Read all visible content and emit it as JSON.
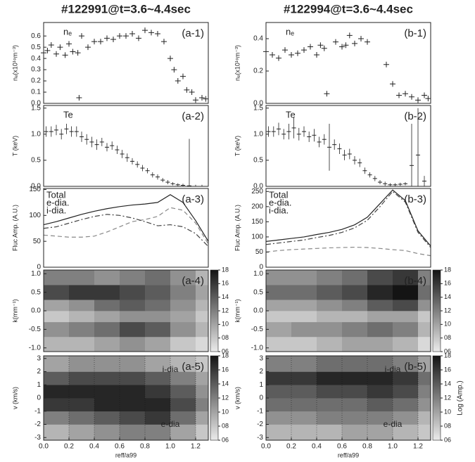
{
  "chart_data": [
    {
      "type": "scatter",
      "title": "#122991@t=3.6~4.4sec",
      "label": "(a-1)",
      "series_label": "nₑ",
      "ylabel": "nₑ(x10¹⁹m⁻³)",
      "color": "#222222",
      "x": [
        0.0,
        0.03,
        0.06,
        0.1,
        0.13,
        0.17,
        0.2,
        0.23,
        0.27,
        0.28,
        0.3,
        0.35,
        0.4,
        0.45,
        0.5,
        0.55,
        0.6,
        0.65,
        0.7,
        0.75,
        0.8,
        0.85,
        0.9,
        0.95,
        1.0,
        1.03,
        1.06,
        1.1,
        1.13,
        1.17,
        1.2,
        1.25,
        1.28
      ],
      "values": [
        0.45,
        0.47,
        0.52,
        0.44,
        0.5,
        0.43,
        0.53,
        0.46,
        0.45,
        0.05,
        0.6,
        0.5,
        0.55,
        0.55,
        0.58,
        0.57,
        0.6,
        0.6,
        0.62,
        0.58,
        0.65,
        0.63,
        0.62,
        0.55,
        0.4,
        0.3,
        0.2,
        0.24,
        0.12,
        0.1,
        0.03,
        0.05,
        0.04
      ],
      "xlim": [
        0,
        1.3
      ],
      "ylim": [
        0,
        0.72
      ],
      "yticks": [
        {
          "value": 0,
          "label": "0.0"
        },
        0.1,
        0.2,
        0.3,
        0.4,
        0.5,
        0.6
      ]
    },
    {
      "type": "errorbar",
      "label": "(a-2)",
      "series_label": "Te",
      "ylabel": "T (keV)",
      "color": "#222222",
      "x": [
        0.02,
        0.06,
        0.1,
        0.14,
        0.18,
        0.22,
        0.26,
        0.3,
        0.34,
        0.38,
        0.42,
        0.46,
        0.5,
        0.54,
        0.58,
        0.62,
        0.66,
        0.7,
        0.74,
        0.78,
        0.82,
        0.86,
        0.9,
        0.94,
        0.98,
        1.02,
        1.06,
        1.1,
        1.15,
        1.2,
        1.25
      ],
      "values": [
        1.05,
        1.05,
        1.08,
        1.0,
        1.1,
        1.05,
        1.05,
        0.95,
        0.9,
        0.85,
        0.8,
        0.85,
        0.75,
        0.78,
        0.7,
        0.62,
        0.55,
        0.48,
        0.42,
        0.35,
        0.3,
        0.22,
        0.18,
        0.12,
        0.08,
        0.05,
        0.03,
        0.02,
        0.01,
        0.0,
        0.0
      ],
      "errors": [
        0.1,
        0.1,
        0.1,
        0.1,
        0.1,
        0.1,
        0.1,
        0.1,
        0.1,
        0.1,
        0.1,
        0.08,
        0.08,
        0.08,
        0.08,
        0.08,
        0.08,
        0.06,
        0.06,
        0.06,
        0.05,
        0.05,
        0.05,
        0.04,
        0.04,
        0.03,
        0.03,
        0.03,
        0.9,
        0.03,
        0.03
      ],
      "xlim": [
        0,
        1.3
      ],
      "ylim": [
        0,
        1.55
      ],
      "yticks": [
        {
          "value": 0,
          "label": "0.0"
        },
        0.5,
        {
          "value": 1,
          "label": "1.0"
        },
        1.5
      ]
    },
    {
      "type": "line",
      "label": "(a-3)",
      "ylabel": "Fluc Amp. (A.U.)",
      "x": [
        0,
        0.1,
        0.2,
        0.3,
        0.4,
        0.5,
        0.6,
        0.7,
        0.8,
        0.9,
        1.0,
        1.1,
        1.2,
        1.3
      ],
      "series": [
        {
          "name": "Total",
          "color": "#222222",
          "dash": "solid",
          "values": [
            82,
            88,
            95,
            102,
            108,
            113,
            117,
            120,
            122,
            125,
            140,
            125,
            90,
            50
          ]
        },
        {
          "name": "e-dia.",
          "color": "#888888",
          "dash": "dashed",
          "values": [
            62,
            60,
            58,
            58,
            60,
            68,
            78,
            88,
            92,
            98,
            115,
            110,
            85,
            45
          ]
        },
        {
          "name": "i-dia.",
          "color": "#444444",
          "dash": "dashdot",
          "values": [
            75,
            78,
            85,
            92,
            98,
            102,
            100,
            95,
            88,
            80,
            82,
            78,
            65,
            40
          ]
        }
      ],
      "xlim": [
        0,
        1.3
      ],
      "ylim": [
        0,
        152
      ],
      "yticks": [
        0,
        50,
        100,
        150
      ]
    },
    {
      "type": "heatmap",
      "label": "(a-4)",
      "ylabel": "k(mm⁻¹)",
      "xbins": [
        0,
        0.2,
        0.4,
        0.6,
        0.8,
        1.0,
        1.2,
        1.3
      ],
      "ybins": [
        -1.1,
        -0.7,
        -0.3,
        0,
        0.3,
        0.7,
        1.1
      ],
      "z": [
        [
          9,
          9,
          10,
          11,
          10,
          8,
          7
        ],
        [
          11,
          12,
          13,
          15,
          14,
          11,
          9
        ],
        [
          8,
          9,
          10,
          11,
          11,
          10,
          8
        ],
        [
          10,
          11,
          13,
          14,
          13,
          11,
          9
        ],
        [
          15,
          16,
          16,
          15,
          14,
          12,
          10
        ],
        [
          12,
          12,
          11,
          12,
          13,
          11,
          9
        ]
      ],
      "zlim": [
        6,
        18
      ],
      "zticks": [
        {
          "value": 6,
          "label": "06"
        },
        {
          "value": 8,
          "label": "08"
        },
        10,
        12,
        14,
        16,
        18
      ],
      "xlim": [
        0,
        1.3
      ],
      "ylim": [
        -1.1,
        1.1
      ],
      "yticks": [
        {
          "value": -1,
          "label": "-1.0"
        },
        -0.5,
        {
          "value": 0,
          "label": "0.0"
        },
        0.5,
        {
          "value": 1,
          "label": "1.0"
        }
      ]
    },
    {
      "type": "heatmap",
      "label": "(a-5)",
      "ylabel": "v (km/s)",
      "xlabel": "reff/a99",
      "annotations": [
        "i-dia",
        "e-dia"
      ],
      "xbins": [
        0,
        0.2,
        0.4,
        0.6,
        0.8,
        1.0,
        1.2,
        1.3
      ],
      "ybins": [
        -3.2,
        -2,
        -1,
        0,
        1,
        2,
        3.2
      ],
      "z": [
        [
          9,
          10,
          11,
          12,
          12,
          10,
          8
        ],
        [
          12,
          13,
          14,
          15,
          16,
          13,
          10
        ],
        [
          16,
          16,
          17,
          17,
          17,
          15,
          12
        ],
        [
          17,
          17,
          17,
          17,
          16,
          14,
          11
        ],
        [
          14,
          15,
          15,
          15,
          14,
          12,
          10
        ],
        [
          10,
          11,
          11,
          11,
          10,
          9,
          8
        ]
      ],
      "zlim": [
        6,
        18
      ],
      "zticks": [
        {
          "value": 6,
          "label": "06"
        },
        {
          "value": 8,
          "label": "08"
        },
        10,
        12,
        14,
        16,
        18
      ],
      "xlim": [
        0,
        1.3
      ],
      "ylim": [
        -3.2,
        3.2
      ],
      "yticks": [
        -3,
        -2,
        -1,
        0,
        1,
        2,
        3
      ],
      "xticks": [
        {
          "value": 0,
          "label": "0.0"
        },
        0.2,
        0.4,
        0.6,
        0.8,
        {
          "value": 1,
          "label": "1.0"
        },
        1.2
      ]
    },
    {
      "type": "scatter",
      "title": "#122994@t=3.6~4.4sec",
      "label": "(b-1)",
      "series_label": "nₑ",
      "ylabel": "nₑ(x10¹⁹m⁻³)",
      "color": "#222222",
      "x": [
        0.0,
        0.05,
        0.1,
        0.15,
        0.2,
        0.25,
        0.3,
        0.35,
        0.4,
        0.43,
        0.46,
        0.48,
        0.55,
        0.6,
        0.63,
        0.66,
        0.7,
        0.75,
        0.8,
        0.95,
        1.0,
        1.05,
        1.1,
        1.15,
        1.2,
        1.25,
        1.28
      ],
      "values": [
        0.32,
        0.3,
        0.28,
        0.33,
        0.3,
        0.31,
        0.33,
        0.35,
        0.3,
        0.36,
        0.34,
        0.06,
        0.38,
        0.35,
        0.36,
        0.42,
        0.37,
        0.4,
        0.38,
        0.24,
        0.12,
        0.05,
        0.06,
        0.04,
        0.02,
        0.05,
        0.03
      ],
      "xlim": [
        0,
        1.3
      ],
      "ylim": [
        0,
        0.5
      ],
      "yticks": [
        {
          "value": 0,
          "label": "0.0"
        },
        0.2,
        0.4
      ]
    },
    {
      "type": "errorbar",
      "label": "(b-2)",
      "series_label": "Te",
      "ylabel": "T (keV)",
      "color": "#222222",
      "x": [
        0.02,
        0.06,
        0.1,
        0.14,
        0.18,
        0.22,
        0.26,
        0.3,
        0.34,
        0.38,
        0.42,
        0.46,
        0.5,
        0.54,
        0.58,
        0.62,
        0.66,
        0.7,
        0.74,
        0.78,
        0.82,
        0.86,
        0.9,
        0.94,
        0.98,
        1.02,
        1.06,
        1.1,
        1.15,
        1.2,
        1.25
      ],
      "values": [
        1.05,
        1.05,
        1.1,
        1.0,
        1.05,
        1.12,
        1.0,
        1.05,
        0.95,
        0.98,
        0.85,
        0.9,
        0.75,
        0.8,
        0.72,
        0.6,
        0.62,
        0.5,
        0.45,
        0.3,
        0.22,
        0.15,
        0.08,
        0.05,
        0.03,
        0.03,
        0.04,
        0.05,
        0.4,
        0.6,
        0.1
      ],
      "errors": [
        0.1,
        0.1,
        0.12,
        0.1,
        0.15,
        0.2,
        0.12,
        0.1,
        0.1,
        0.12,
        0.1,
        0.1,
        0.45,
        0.1,
        0.1,
        0.1,
        0.1,
        0.08,
        0.08,
        0.06,
        0.05,
        0.05,
        0.04,
        0.04,
        0.03,
        0.03,
        0.03,
        0.03,
        0.8,
        0.9,
        0.1
      ],
      "xlim": [
        0,
        1.3
      ],
      "ylim": [
        0,
        1.55
      ],
      "yticks": [
        {
          "value": 0,
          "label": "0.0"
        },
        0.5,
        {
          "value": 1,
          "label": "1.0"
        },
        1.5
      ]
    },
    {
      "type": "line",
      "label": "(b-3)",
      "ylabel": "Fluc Amp. (A.U.)",
      "x": [
        0,
        0.1,
        0.2,
        0.3,
        0.4,
        0.5,
        0.6,
        0.7,
        0.8,
        0.9,
        1.0,
        1.1,
        1.2,
        1.3
      ],
      "series": [
        {
          "name": "Total",
          "color": "#222222",
          "dash": "solid",
          "values": [
            85,
            90,
            95,
            100,
            108,
            115,
            125,
            140,
            165,
            210,
            255,
            220,
            120,
            70
          ]
        },
        {
          "name": "e-dia.",
          "color": "#888888",
          "dash": "dashed",
          "values": [
            50,
            55,
            58,
            60,
            62,
            64,
            65,
            66,
            65,
            62,
            58,
            55,
            45,
            38
          ]
        },
        {
          "name": "i-dia.",
          "color": "#444444",
          "dash": "dashdot",
          "values": [
            75,
            80,
            85,
            90,
            98,
            105,
            115,
            130,
            155,
            200,
            250,
            215,
            115,
            65
          ]
        }
      ],
      "xlim": [
        0,
        1.3
      ],
      "ylim": [
        0,
        260
      ],
      "yticks": [
        0,
        50,
        100,
        150,
        200,
        250
      ]
    },
    {
      "type": "heatmap",
      "label": "(b-4)",
      "ylabel": "k(mm⁻¹)",
      "xbins": [
        0,
        0.2,
        0.4,
        0.6,
        0.8,
        1.0,
        1.2,
        1.3
      ],
      "ybins": [
        -1.1,
        -0.7,
        -0.3,
        0,
        0.3,
        0.7,
        1.1
      ],
      "z": [
        [
          8,
          8,
          9,
          10,
          10,
          9,
          7
        ],
        [
          10,
          11,
          11,
          12,
          13,
          12,
          9
        ],
        [
          8,
          8,
          9,
          9,
          10,
          10,
          8
        ],
        [
          10,
          10,
          11,
          12,
          14,
          15,
          11
        ],
        [
          13,
          13,
          14,
          15,
          17,
          18,
          13
        ],
        [
          11,
          11,
          12,
          13,
          15,
          16,
          12
        ]
      ],
      "zlim": [
        6,
        18
      ],
      "zticks": [
        {
          "value": 6,
          "label": "06"
        },
        {
          "value": 8,
          "label": "08"
        },
        10,
        12,
        14,
        16,
        18
      ],
      "xlim": [
        0,
        1.3
      ],
      "ylim": [
        -1.1,
        1.1
      ],
      "yticks": [
        {
          "value": -1,
          "label": "-1.0"
        },
        -0.5,
        {
          "value": 0,
          "label": "0.0"
        },
        0.5,
        {
          "value": 1,
          "label": "1.0"
        }
      ]
    },
    {
      "type": "heatmap",
      "label": "(b-5)",
      "ylabel": "v (km/s)",
      "xlabel": "reff/a99",
      "zlabel": "Log (Amp.)",
      "annotations": [
        "i-dia",
        "e-dia"
      ],
      "xbins": [
        0,
        0.2,
        0.4,
        0.6,
        0.8,
        1.0,
        1.2,
        1.3
      ],
      "ybins": [
        -3.2,
        -2,
        -1,
        0,
        1,
        2,
        3.2
      ],
      "z": [
        [
          9,
          9,
          9,
          10,
          10,
          9,
          8
        ],
        [
          11,
          11,
          12,
          12,
          12,
          11,
          9
        ],
        [
          13,
          13,
          13,
          13,
          14,
          13,
          11
        ],
        [
          14,
          14,
          15,
          15,
          16,
          15,
          12
        ],
        [
          16,
          16,
          17,
          17,
          17,
          16,
          13
        ],
        [
          12,
          12,
          13,
          13,
          13,
          12,
          10
        ]
      ],
      "zlim": [
        6,
        18
      ],
      "zticks": [
        {
          "value": 6,
          "label": "06"
        },
        {
          "value": 8,
          "label": "08"
        },
        10,
        12,
        14,
        16,
        18
      ],
      "xlim": [
        0,
        1.3
      ],
      "ylim": [
        -3.2,
        3.2
      ],
      "yticks": [
        -3,
        -2,
        -1,
        0,
        1,
        2,
        3
      ],
      "xticks": [
        {
          "value": 0,
          "label": "0.0"
        },
        0.2,
        0.4,
        0.6,
        0.8,
        {
          "value": 1,
          "label": "1.0"
        },
        1.2
      ]
    }
  ]
}
